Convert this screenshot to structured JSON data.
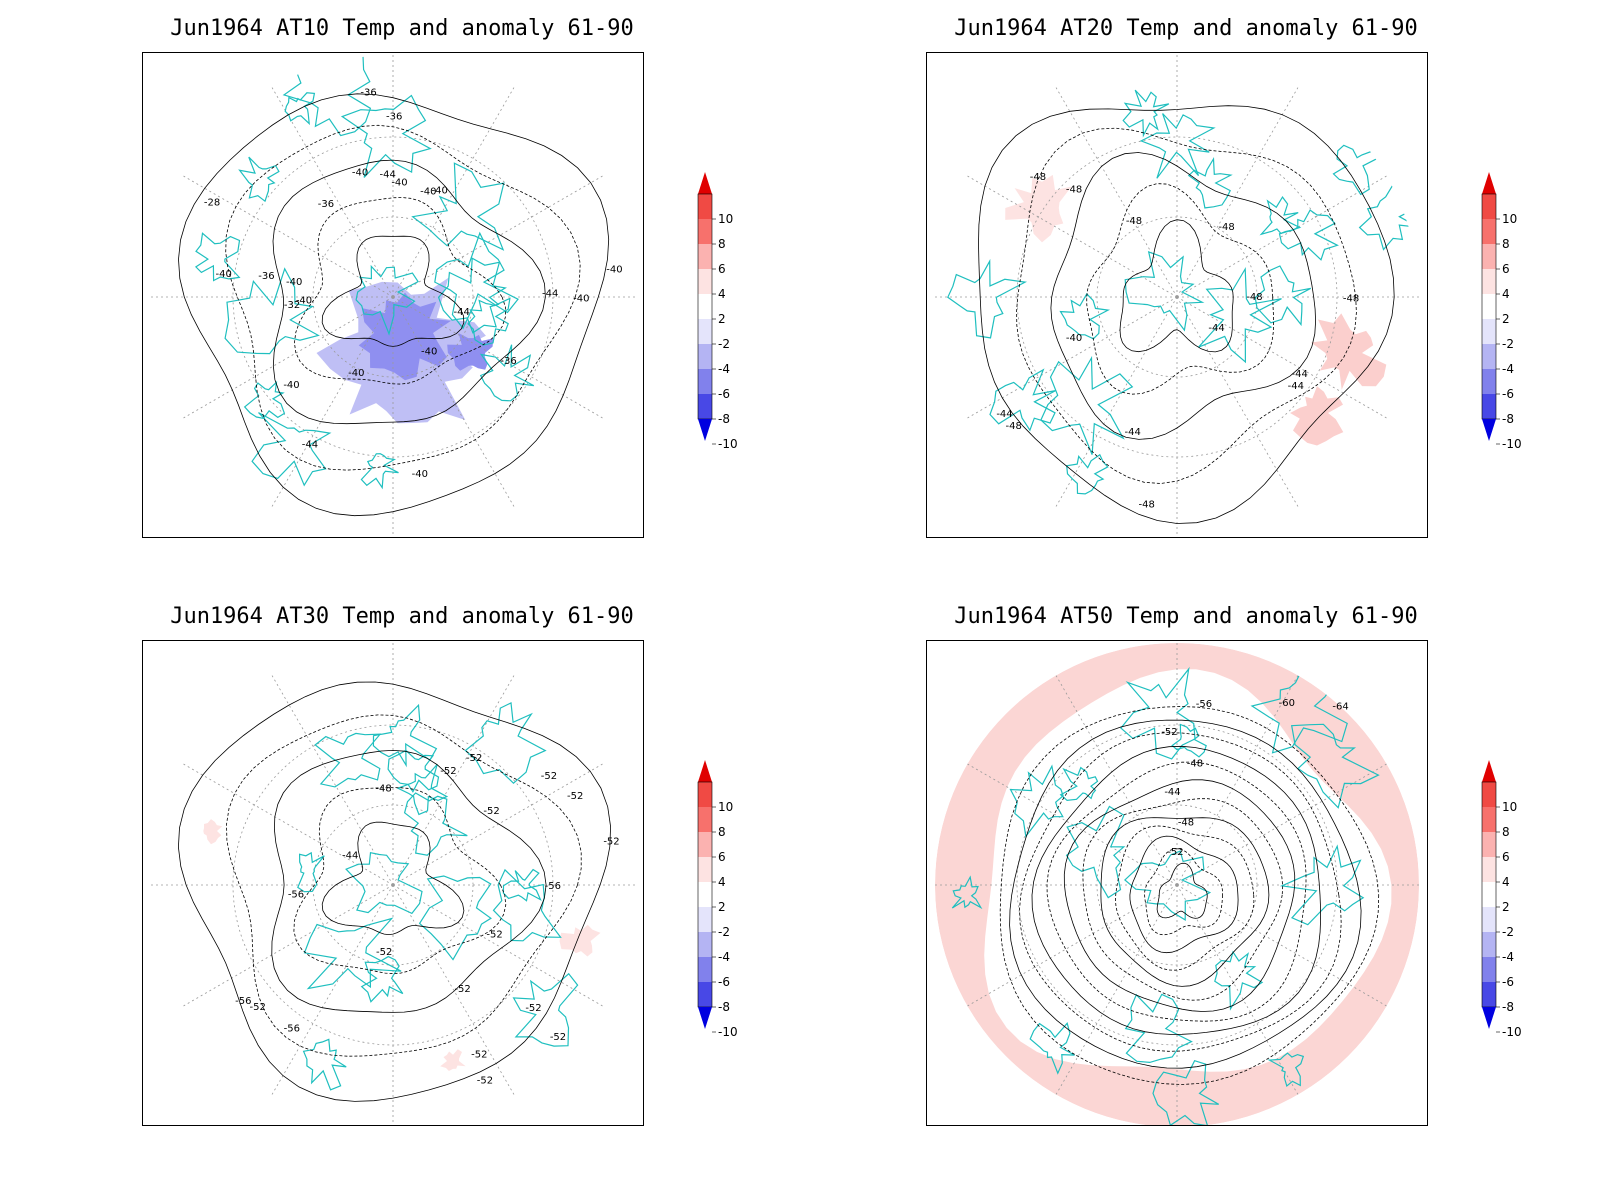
{
  "panels": [
    {
      "title": "Jun1964 AT10 Temp and anomaly 61-90",
      "labels": [
        "-40",
        "-40",
        "-40",
        "-36",
        "-36",
        "-36",
        "-32",
        "-36",
        "-28",
        "-40",
        "-44",
        "-40",
        "-36",
        "-40",
        "-44",
        "-40",
        "-40",
        "-44",
        "-40",
        "-40",
        "-40",
        "-44",
        "-40",
        "-40"
      ],
      "anomaly": "cold"
    },
    {
      "title": "Jun1964 AT20 Temp and anomaly 61-90",
      "labels": [
        "-48",
        "-44",
        "-44",
        "-48",
        "-44",
        "-40",
        "-44",
        "-44",
        "-48",
        "-48",
        "-48",
        "-48",
        "-48",
        "-48"
      ],
      "anomaly": "warm-patches"
    },
    {
      "title": "Jun1964 AT30 Temp and anomaly 61-90",
      "labels": [
        "-56",
        "-52",
        "-52",
        "-52",
        "-52",
        "-52",
        "-52",
        "-56",
        "-52",
        "-52",
        "-44",
        "-48",
        "-52",
        "-52",
        "-52",
        "-52",
        "-52",
        "-56",
        "-52",
        "-56"
      ],
      "anomaly": "warm-patches-small"
    },
    {
      "title": "Jun1964 AT50 Temp and anomaly 61-90",
      "labels": [
        "-52",
        "-48",
        "-44",
        "-48",
        "-52",
        "-56",
        "-60",
        "-64"
      ],
      "anomaly": "warm-ring"
    }
  ],
  "colorbar": {
    "ticks": [
      "10",
      "8",
      "6",
      "4",
      "2",
      "-2",
      "-4",
      "-6",
      "-8",
      "-10"
    ],
    "colors": [
      "#e8211b",
      "#f04a44",
      "#f7716c",
      "#fbb2b0",
      "#fde3e2",
      "#ffffff",
      "#e4e4fb",
      "#b4b4f3",
      "#8181ec",
      "#4848e6",
      "#1c1cf0"
    ],
    "top_arrow_color": "#e00000",
    "bottom_arrow_color": "#0000e0"
  },
  "colors": {
    "coastline": "#1fbfbf",
    "contour": "#000000",
    "grid": "#9a9a9a"
  }
}
